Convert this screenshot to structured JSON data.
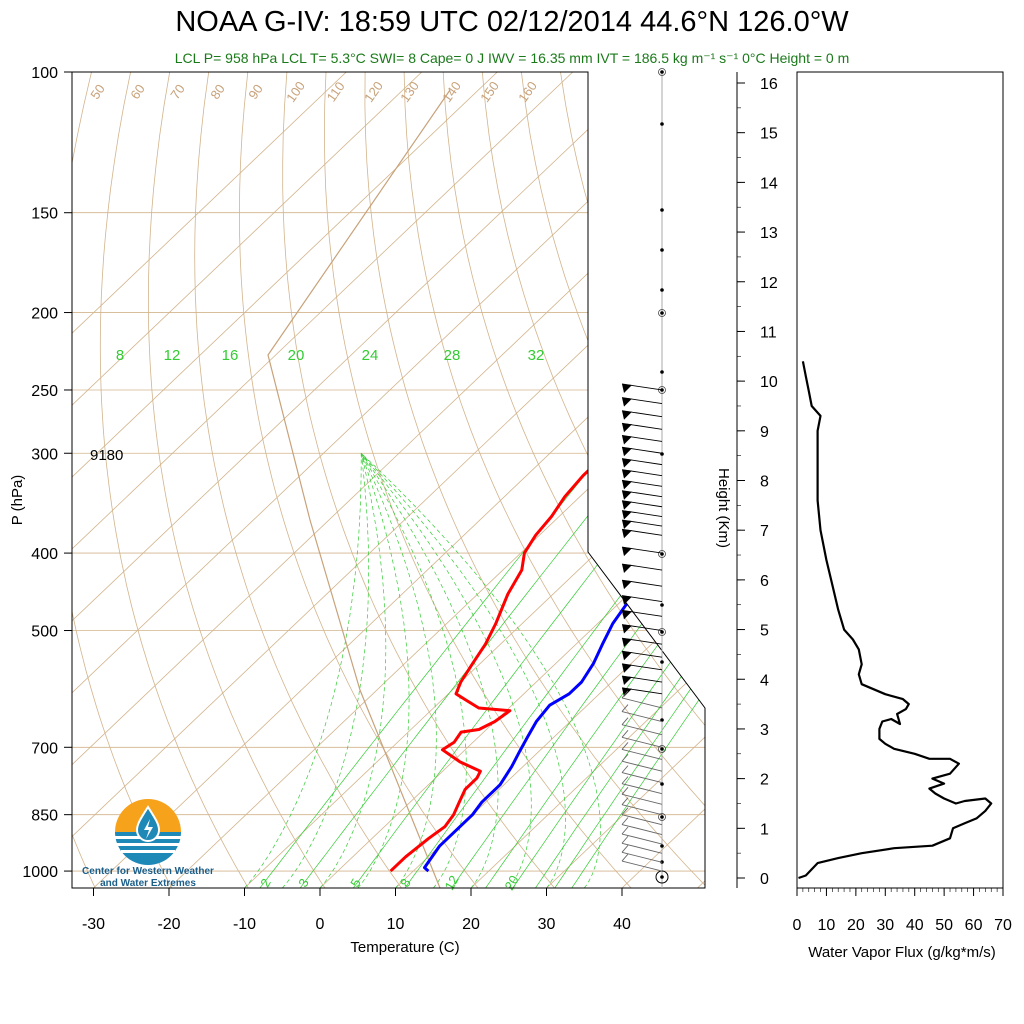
{
  "header": {
    "title": "NOAA G-IV: 18:59 UTC 02/12/2014  44.6°N 126.0°W",
    "subtitle": "LCL P= 958 hPa  LCL T= 5.3°C  SWI= 8  Cape= 0 J  IWV = 16.35 mm  IVT = 186.5 kg m⁻¹ s⁻¹  0°C Height = 0 m"
  },
  "logo": {
    "line1": "Center for Western Weather",
    "line2": "and Water Extremes"
  },
  "colors": {
    "temperature": "#ff0000",
    "dewpoint": "#0000ff",
    "isotherm": "#d2b48c",
    "mixing_ratio": "#33cc33",
    "flux": "#000000"
  },
  "chart_data": [
    {
      "type": "line",
      "name": "skew-t",
      "xlabel": "Temperature (C)",
      "ylabel": "P (hPa)",
      "x_ticks": [
        -30,
        -20,
        -10,
        0,
        10,
        20,
        30,
        40
      ],
      "y_ticks": [
        100,
        150,
        200,
        250,
        300,
        400,
        500,
        700,
        850,
        1000
      ],
      "xlim": [
        -33,
        40
      ],
      "ylim": [
        1050,
        100
      ],
      "annotation": "9180",
      "mixing_ratio_labels_top": [
        "8",
        "12",
        "16",
        "20",
        "24",
        "28",
        "32"
      ],
      "mixing_ratio_labels_bottom": [
        "2",
        "3",
        "5",
        "8",
        "12",
        "20"
      ],
      "dry_adiabat_labels": [
        "50",
        "60",
        "70",
        "80",
        "90",
        "100",
        "110",
        "120",
        "130",
        "140",
        "150",
        "160"
      ],
      "series": [
        {
          "name": "Temperature",
          "points": [
            [
              -23.5,
              250
            ],
            [
              -21,
              265
            ],
            [
              -19,
              280
            ],
            [
              -17.5,
              293
            ],
            [
              -21,
              300
            ],
            [
              -22.5,
              305
            ],
            [
              -22.5,
              320
            ],
            [
              -22,
              340
            ],
            [
              -21,
              360
            ],
            [
              -20.5,
              380
            ],
            [
              -19.5,
              400
            ],
            [
              -17.5,
              420
            ],
            [
              -16,
              450
            ],
            [
              -13.5,
              490
            ],
            [
              -12,
              520
            ],
            [
              -11,
              550
            ],
            [
              -10,
              580
            ],
            [
              -9,
              600
            ],
            [
              -7,
              610
            ],
            [
              -4,
              625
            ],
            [
              0.5,
              630
            ],
            [
              0,
              650
            ],
            [
              -1,
              665
            ],
            [
              -3,
              670
            ],
            [
              -2.5,
              690
            ],
            [
              -3,
              705
            ],
            [
              1,
              730
            ],
            [
              5,
              750
            ],
            [
              5.5,
              765
            ],
            [
              5.5,
              790
            ],
            [
              6.5,
              820
            ],
            [
              7.5,
              850
            ],
            [
              8,
              880
            ],
            [
              7.5,
              910
            ],
            [
              7,
              960
            ],
            [
              7,
              1000
            ]
          ]
        },
        {
          "name": "Dewpoint",
          "points": [
            [
              -8.5,
              250
            ],
            [
              -7,
              265
            ],
            [
              -5,
              290
            ],
            [
              -4,
              310
            ],
            [
              -3,
              330
            ],
            [
              -3.5,
              350
            ],
            [
              -2,
              370
            ],
            [
              -1,
              400
            ],
            [
              0,
              430
            ],
            [
              1,
              460
            ],
            [
              2,
              490
            ],
            [
              3.5,
              520
            ],
            [
              5,
              550
            ],
            [
              6,
              580
            ],
            [
              6,
              600
            ],
            [
              5,
              620
            ],
            [
              5.5,
              650
            ],
            [
              6.5,
              680
            ],
            [
              7.5,
              710
            ],
            [
              8.5,
              740
            ],
            [
              9.5,
              780
            ],
            [
              9.5,
              820
            ],
            [
              10,
              850
            ],
            [
              10,
              880
            ],
            [
              10,
              930
            ],
            [
              11,
              990
            ],
            [
              12,
              1000
            ]
          ]
        }
      ]
    },
    {
      "type": "barbs",
      "name": "wind-barbs",
      "levels_hpa": [
        250,
        260,
        270,
        280,
        290,
        300,
        310,
        320,
        330,
        340,
        350,
        360,
        370,
        380,
        400,
        420,
        440,
        460,
        480,
        500,
        520,
        540,
        560,
        580,
        600,
        625,
        650,
        675,
        700,
        725,
        750,
        775,
        800,
        825,
        850,
        875,
        900,
        925,
        950,
        975,
        1000
      ]
    },
    {
      "type": "line",
      "name": "water-vapor-flux",
      "xlabel": "Water Vapor Flux (g/kg*m/s)",
      "ylabel": "Height (Km)",
      "x_ticks": [
        0,
        10,
        20,
        30,
        40,
        50,
        60,
        70
      ],
      "y_ticks": [
        0,
        1,
        2,
        3,
        4,
        5,
        6,
        7,
        8,
        9,
        10,
        11,
        12,
        13,
        14,
        15,
        16
      ],
      "xlim": [
        0,
        70
      ],
      "ylim": [
        0,
        16.4
      ],
      "series": [
        {
          "name": "Flux",
          "points": [
            [
              0.5,
              0
            ],
            [
              3,
              0.05
            ],
            [
              7,
              0.3
            ],
            [
              14,
              0.4
            ],
            [
              22,
              0.5
            ],
            [
              33,
              0.6
            ],
            [
              46,
              0.65
            ],
            [
              52,
              0.8
            ],
            [
              53,
              1.0
            ],
            [
              57,
              1.1
            ],
            [
              61,
              1.2
            ],
            [
              64,
              1.35
            ],
            [
              66,
              1.5
            ],
            [
              64,
              1.6
            ],
            [
              57,
              1.55
            ],
            [
              54,
              1.5
            ],
            [
              50,
              1.6
            ],
            [
              47,
              1.7
            ],
            [
              45,
              1.8
            ],
            [
              50,
              1.9
            ],
            [
              46,
              2.0
            ],
            [
              52,
              2.1
            ],
            [
              55,
              2.3
            ],
            [
              52,
              2.4
            ],
            [
              45,
              2.4
            ],
            [
              40,
              2.5
            ],
            [
              33,
              2.6
            ],
            [
              30,
              2.7
            ],
            [
              28,
              2.8
            ],
            [
              28,
              3.0
            ],
            [
              29,
              3.15
            ],
            [
              32,
              3.2
            ],
            [
              35,
              3.1
            ],
            [
              34,
              3.3
            ],
            [
              37,
              3.4
            ],
            [
              38,
              3.5
            ],
            [
              36,
              3.6
            ],
            [
              30,
              3.7
            ],
            [
              26,
              3.8
            ],
            [
              22,
              3.9
            ],
            [
              21,
              4.1
            ],
            [
              22,
              4.3
            ],
            [
              21,
              4.6
            ],
            [
              19,
              4.8
            ],
            [
              16,
              5.0
            ],
            [
              14,
              5.4
            ],
            [
              12,
              5.9
            ],
            [
              10,
              6.4
            ],
            [
              8,
              7.0
            ],
            [
              7,
              7.6
            ],
            [
              7,
              8.3
            ],
            [
              7,
              9.0
            ],
            [
              8,
              9.3
            ],
            [
              5,
              9.5
            ],
            [
              4,
              9.8
            ],
            [
              3,
              10.1
            ],
            [
              2,
              10.4
            ]
          ]
        }
      ]
    }
  ]
}
